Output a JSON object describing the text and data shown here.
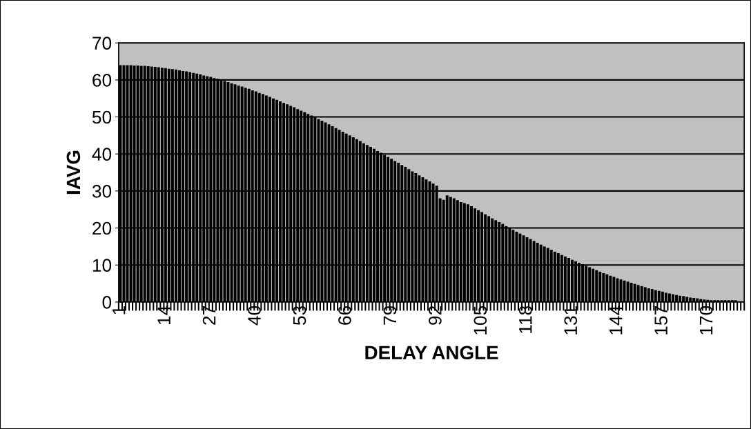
{
  "chart_data": {
    "type": "bar",
    "xlabel": "DELAY ANGLE",
    "ylabel": "IAVG",
    "categories": [
      "1",
      null,
      null,
      null,
      null,
      null,
      null,
      null,
      null,
      null,
      null,
      null,
      null,
      "14",
      null,
      null,
      null,
      null,
      null,
      null,
      null,
      null,
      null,
      null,
      null,
      null,
      "27",
      null,
      null,
      null,
      null,
      null,
      null,
      null,
      null,
      null,
      null,
      null,
      null,
      "40",
      null,
      null,
      null,
      null,
      null,
      null,
      null,
      null,
      null,
      null,
      null,
      null,
      "53",
      null,
      null,
      null,
      null,
      null,
      null,
      null,
      null,
      null,
      null,
      null,
      null,
      "66",
      null,
      null,
      null,
      null,
      null,
      null,
      null,
      null,
      null,
      null,
      null,
      null,
      "79",
      null,
      null,
      null,
      null,
      null,
      null,
      null,
      null,
      null,
      null,
      null,
      null,
      "92",
      null,
      null,
      null,
      null,
      null,
      null,
      null,
      null,
      null,
      null,
      null,
      null,
      "105",
      null,
      null,
      null,
      null,
      null,
      null,
      null,
      null,
      null,
      null,
      null,
      null,
      "118",
      null,
      null,
      null,
      null,
      null,
      null,
      null,
      null,
      null,
      null,
      null,
      null,
      "131",
      null,
      null,
      null,
      null,
      null,
      null,
      null,
      null,
      null,
      null,
      null,
      null,
      "144",
      null,
      null,
      null,
      null,
      null,
      null,
      null,
      null,
      null,
      null,
      null,
      null,
      "157",
      null,
      null,
      null,
      null,
      null,
      null,
      null,
      null,
      null,
      null,
      null,
      null,
      "170",
      null,
      null,
      null,
      null,
      null,
      null,
      null,
      null,
      null,
      null
    ],
    "series": [
      {
        "color": "#000000",
        "values": [
          64.0,
          64.0,
          64.0,
          64.0,
          63.9,
          63.9,
          63.8,
          63.8,
          63.7,
          63.6,
          63.5,
          63.4,
          63.3,
          63.2,
          63.0,
          62.9,
          62.8,
          62.6,
          62.4,
          62.3,
          62.1,
          61.9,
          61.7,
          61.5,
          61.2,
          61.0,
          60.8,
          60.5,
          60.3,
          60.0,
          59.7,
          59.4,
          59.1,
          58.8,
          58.5,
          58.2,
          57.9,
          57.6,
          57.2,
          56.9,
          56.5,
          56.2,
          55.8,
          55.4,
          55.0,
          54.6,
          54.2,
          53.8,
          53.4,
          53.0,
          52.6,
          52.1,
          51.7,
          51.3,
          50.8,
          50.4,
          49.9,
          49.4,
          49.0,
          48.5,
          48.0,
          47.5,
          47.0,
          46.5,
          46.0,
          45.5,
          45.0,
          44.5,
          44.0,
          43.5,
          42.9,
          42.4,
          41.9,
          41.4,
          40.8,
          40.3,
          39.7,
          39.2,
          38.7,
          38.1,
          37.6,
          37.0,
          36.5,
          35.9,
          35.3,
          34.8,
          34.2,
          33.7,
          33.1,
          32.6,
          32.0,
          31.4,
          28.0,
          27.6,
          28.8,
          28.4,
          28.0,
          27.5,
          27.0,
          26.7,
          26.4,
          25.9,
          25.3,
          24.8,
          24.3,
          23.7,
          23.2,
          22.6,
          22.1,
          21.6,
          21.1,
          20.5,
          20.0,
          19.5,
          19.0,
          18.5,
          18.0,
          17.5,
          17.0,
          16.5,
          16.0,
          15.5,
          15.0,
          14.6,
          14.1,
          13.6,
          13.2,
          12.7,
          12.3,
          11.9,
          11.4,
          11.0,
          10.6,
          10.2,
          9.8,
          9.4,
          9.0,
          8.6,
          8.2,
          7.8,
          7.5,
          7.1,
          6.8,
          6.4,
          6.1,
          5.8,
          5.5,
          5.2,
          4.9,
          4.6,
          4.3,
          4.0,
          3.7,
          3.5,
          3.2,
          3.0,
          2.8,
          2.5,
          2.3,
          2.1,
          1.9,
          1.7,
          1.6,
          1.4,
          1.2,
          1.1,
          1.0,
          0.8,
          0.7,
          0.6,
          0.5,
          0.5,
          0.5,
          0.5,
          0.5,
          0.5,
          0.5,
          0.5,
          0,
          0
        ]
      }
    ],
    "ylim": [
      0,
      70
    ],
    "yticks": [
      0,
      10,
      20,
      30,
      40,
      50,
      60,
      70
    ],
    "grid": "y"
  }
}
